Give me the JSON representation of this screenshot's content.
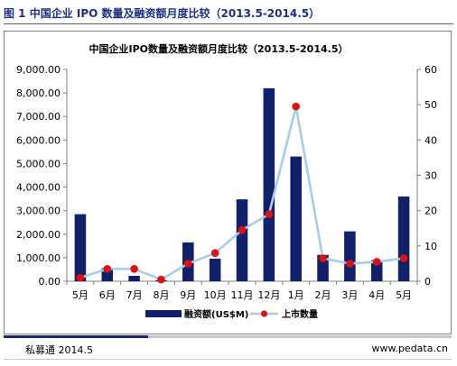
{
  "figure": {
    "caption": "图 1  中国企业 IPO 数量及融资额月度比较（2013.5-2014.5）"
  },
  "footer": {
    "source_left": "私募通 2014.5",
    "source_right": "www.pedata.cn"
  },
  "colors": {
    "caption": "#1f2f86",
    "bar": "#10206b",
    "line": "#a9cde8",
    "marker": "#e01010"
  },
  "chart_data": {
    "type": "bar",
    "title": "中国企业IPO数量及融资额月度比较（2013.5-2014.5）",
    "categories": [
      "5月",
      "6月",
      "7月",
      "8月",
      "9月",
      "10月",
      "11月",
      "12月",
      "1月",
      "2月",
      "3月",
      "4月",
      "5月"
    ],
    "series": [
      {
        "name": "融资额(US$M)",
        "type": "bar",
        "axis": "left",
        "values": [
          2850,
          550,
          230,
          40,
          1650,
          960,
          3480,
          8200,
          5300,
          1120,
          2120,
          900,
          3600
        ]
      },
      {
        "name": "上市数量",
        "type": "line",
        "axis": "right",
        "values": [
          1,
          3.5,
          3.5,
          0.5,
          5,
          8,
          14.5,
          19,
          49.5,
          6.5,
          5,
          5.5,
          6.5
        ]
      }
    ],
    "y_left": {
      "ylim": [
        0,
        9000
      ],
      "ticks": [
        "0.00",
        "1,000.00",
        "2,000.00",
        "3,000.00",
        "4,000.00",
        "5,000.00",
        "6,000.00",
        "7,000.00",
        "8,000.00",
        "9,000.00"
      ]
    },
    "y_right": {
      "ylim": [
        0,
        60
      ],
      "ticks": [
        "0",
        "10",
        "20",
        "30",
        "40",
        "50",
        "60"
      ]
    },
    "grid": false,
    "legend_position": "bottom"
  }
}
